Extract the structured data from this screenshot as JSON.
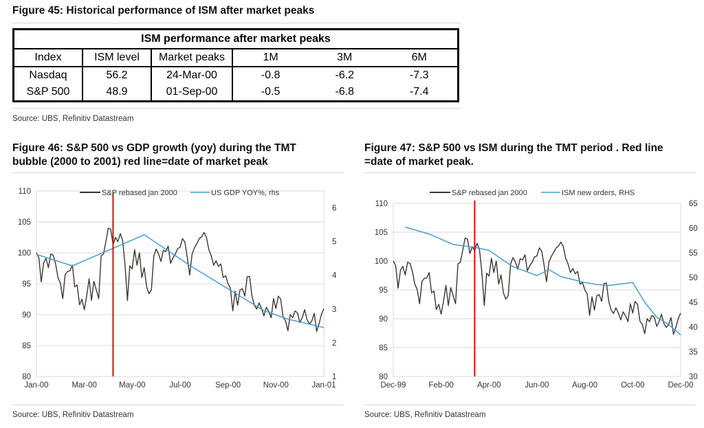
{
  "fig45": {
    "title": "Figure 45: Historical performance of ISM after market peaks",
    "table": {
      "caption": "ISM performance after market peaks",
      "columns": [
        "Index",
        "ISM level",
        "Market peaks",
        "1M",
        "3M",
        "6M"
      ],
      "rows": [
        [
          "Nasdaq",
          "56.2",
          "24-Mar-00",
          "-0.8",
          "-6.2",
          "-7.3"
        ],
        [
          "S&P 500",
          "48.9",
          "01-Sep-00",
          "-0.5",
          "-6.8",
          "-7.4"
        ]
      ]
    },
    "source": "Source: UBS, Refinitiv Datastream"
  },
  "fig46": {
    "title_line1": "Figure 46: S&P 500 vs GDP growth (yoy) during the TMT",
    "title_line2": "bubble (2000 to 2001) red line=date of market peak",
    "source": "Source: UBS, Refinitiv Datastream"
  },
  "fig47": {
    "title_line1": "Figure 47: S&P 500 vs ISM during the TMT period . Red line",
    "title_line2": "=date of market peak.",
    "source": "Source: UBS, Refinitiv Datastream"
  },
  "colors": {
    "sp": "#3d3530",
    "blue": "#4a9ccc",
    "red": "#d01010",
    "grid": "#d9d9d9"
  },
  "chart_data": [
    {
      "type": "line",
      "id": "fig46",
      "title": "S&P 500 vs GDP growth (yoy) during the TMT bubble (2000 to 2001) red line=date of market peak",
      "x_tick_labels": [
        "Jan-00",
        "Mar-00",
        "May-00",
        "Jul-00",
        "Sep-00",
        "Nov-00",
        "Jan-01"
      ],
      "x_range_months": [
        0,
        12
      ],
      "y_left": {
        "ticks": [
          "80",
          "85",
          "90",
          "95",
          "100",
          "105",
          "110"
        ],
        "range": [
          80,
          110
        ]
      },
      "y_right": {
        "ticks": [
          "1",
          "2",
          "3",
          "4",
          "5",
          "6"
        ],
        "range": [
          1,
          6.5
        ]
      },
      "grid": true,
      "legend": {
        "placement": "top-center",
        "entries": [
          "S&P rebased jan 2000",
          "US GDP YOY%, rhs"
        ]
      },
      "vline_month": 3.2,
      "series": [
        {
          "name": "S&P rebased jan 2000",
          "axis": "left",
          "x": [
            0,
            0.1,
            0.2,
            0.3,
            0.4,
            0.5,
            0.6,
            0.7,
            0.8,
            0.9,
            1.0,
            1.1,
            1.2,
            1.3,
            1.4,
            1.5,
            1.6,
            1.7,
            1.8,
            1.9,
            2.0,
            2.1,
            2.2,
            2.3,
            2.4,
            2.5,
            2.6,
            2.7,
            2.8,
            2.9,
            3.0,
            3.1,
            3.2,
            3.3,
            3.4,
            3.5,
            3.6,
            3.7,
            3.8,
            3.9,
            4.0,
            4.1,
            4.2,
            4.3,
            4.4,
            4.5,
            4.6,
            4.7,
            4.8,
            4.9,
            5.0,
            5.1,
            5.2,
            5.3,
            5.4,
            5.5,
            5.6,
            5.7,
            5.8,
            5.9,
            6.0,
            6.1,
            6.2,
            6.3,
            6.4,
            6.5,
            6.6,
            6.7,
            6.8,
            6.9,
            7.0,
            7.1,
            7.2,
            7.3,
            7.4,
            7.5,
            7.6,
            7.7,
            7.8,
            7.9,
            8.0,
            8.1,
            8.2,
            8.3,
            8.4,
            8.5,
            8.6,
            8.7,
            8.8,
            8.9,
            9.0,
            9.1,
            9.2,
            9.3,
            9.4,
            9.5,
            9.6,
            9.7,
            9.8,
            9.9,
            10.0,
            10.1,
            10.2,
            10.3,
            10.4,
            10.5,
            10.6,
            10.7,
            10.8,
            10.9,
            11.0,
            11.1,
            11.2,
            11.3,
            11.4,
            11.5,
            11.6,
            11.7,
            11.8,
            11.9,
            12.0
          ],
          "values": [
            100,
            99.2,
            95.3,
            98.4,
            99.1,
            97.6,
            99.8,
            99.6,
            98.2,
            96.0,
            95.1,
            92.6,
            96.5,
            97.0,
            97.1,
            98.0,
            94.5,
            94.8,
            91.6,
            92.5,
            90.8,
            93.1,
            95.8,
            92.3,
            95.4,
            94.0,
            92.6,
            99.5,
            99.8,
            101.8,
            104.0,
            103.8,
            101.3,
            102.5,
            101.8,
            103.1,
            102.0,
            98.0,
            92.3,
            97.9,
            97.4,
            100.5,
            98.0,
            100.0,
            96.0,
            97.6,
            94.5,
            93.4,
            94.0,
            99.5,
            100.6,
            99.8,
            98.6,
            100.4,
            100.2,
            101.1,
            98.3,
            99.2,
            99.8,
            100.7,
            100.9,
            102.3,
            101.7,
            99.2,
            96.4,
            99.8,
            100.8,
            101.5,
            102.3,
            102.6,
            103.3,
            102.5,
            100.5,
            99.5,
            98.0,
            98.7,
            97.8,
            98.2,
            96.0,
            96.3,
            95.0,
            94.3,
            90.6,
            93.8,
            91.5,
            94.0,
            94.2,
            93.0,
            96.1,
            96.2,
            93.0,
            91.5,
            90.9,
            91.9,
            91.0,
            89.8,
            91.2,
            90.5,
            89.5,
            92.6,
            91.0,
            93.0,
            92.5,
            89.6,
            89.0,
            87.4,
            90.0,
            89.5,
            90.6,
            90.3,
            88.7,
            89.5,
            90.8,
            89.2,
            88.5,
            89.0,
            90.2,
            87.3,
            88.5,
            90.0,
            91.0
          ]
        },
        {
          "name": "US GDP YOY%, rhs",
          "axis": "right",
          "x": [
            0,
            1.5,
            4.5,
            6.5,
            9.5,
            10.5,
            12
          ],
          "values": [
            4.62,
            4.28,
            5.2,
            4.25,
            2.95,
            2.7,
            2.45
          ]
        }
      ]
    },
    {
      "type": "line",
      "id": "fig47",
      "title": "S&P 500 vs ISM during the TMT period . Red line =date of market peak.",
      "x_tick_labels": [
        "Dec-99",
        "Feb-00",
        "Apr-00",
        "Jun-00",
        "Aug-00",
        "Oct-00",
        "Dec-00"
      ],
      "x_range_months": [
        0,
        12
      ],
      "y_left": {
        "ticks": [
          "80",
          "85",
          "90",
          "95",
          "100",
          "105",
          "110"
        ],
        "range": [
          80,
          110
        ]
      },
      "y_right": {
        "ticks": [
          "30",
          "35",
          "40",
          "45",
          "50",
          "55",
          "60",
          "65"
        ],
        "range": [
          30,
          65
        ]
      },
      "grid": true,
      "legend": {
        "placement": "top-center",
        "entries": [
          "S&P rebased jan 2000",
          "ISM new orders, RHS"
        ]
      },
      "vline_month": 3.4,
      "series": [
        {
          "name": "S&P rebased jan 2000",
          "axis": "left",
          "same_as": "fig46 S&P series"
        },
        {
          "name": "ISM new orders, RHS",
          "axis": "right",
          "x": [
            0.5,
            1.5,
            2.5,
            3.5,
            4.0,
            4.5,
            5.0,
            5.5,
            6.0,
            6.5,
            7.0,
            7.5,
            8.0,
            8.5,
            9.0,
            9.5,
            10.0,
            10.5,
            11.0,
            11.5,
            12.0
          ],
          "values": [
            60.2,
            58.8,
            56.7,
            56.0,
            55.5,
            53.8,
            52.2,
            51.3,
            50.4,
            51.6,
            50.2,
            49.6,
            49.0,
            48.6,
            48.4,
            48.7,
            49.0,
            45.0,
            42.0,
            40.5,
            38.4
          ]
        }
      ]
    }
  ]
}
